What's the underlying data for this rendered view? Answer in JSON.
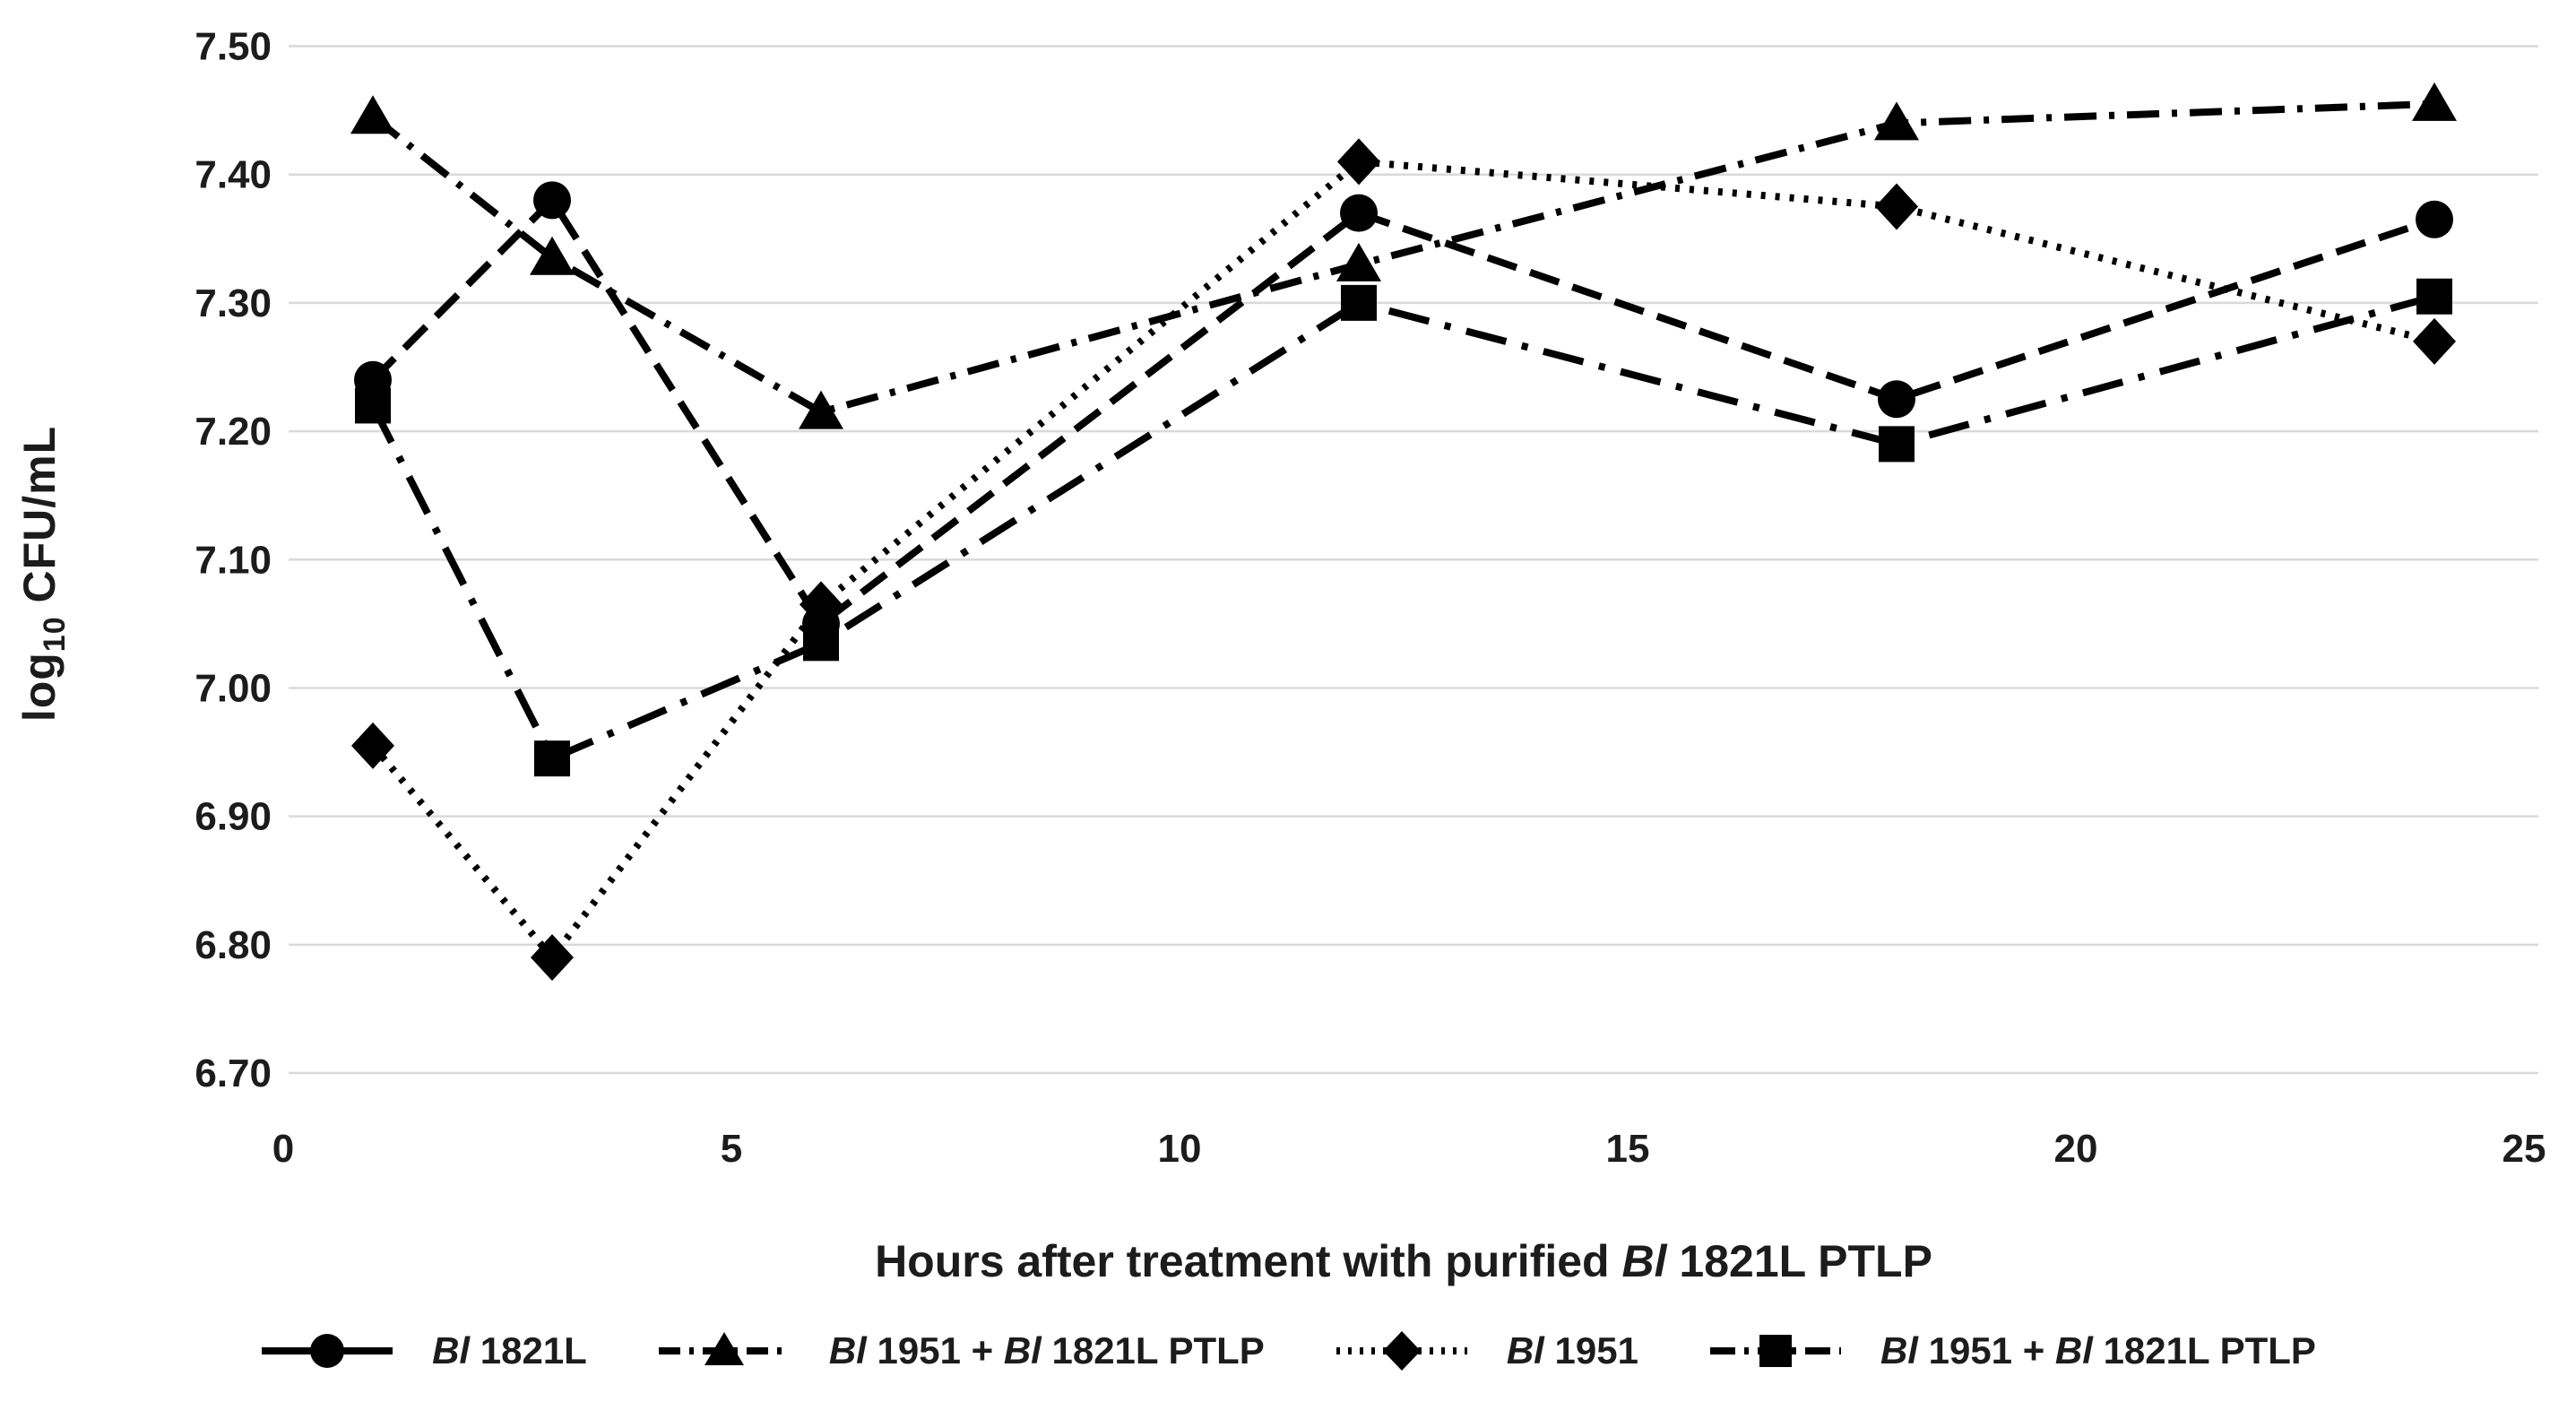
{
  "figure": {
    "background": "#ffffff",
    "grid_color": "#d9d9d9",
    "text_color": "#1c1c1c",
    "series_color": "#000000"
  },
  "chart_data": {
    "type": "line",
    "title": "",
    "xlabel": "Hours after treatment with purified Bl 1821L PTLP",
    "xlabel_segments": [
      {
        "text": "Hours after treatment with purified ",
        "italic": false
      },
      {
        "text": "Bl",
        "italic": true
      },
      {
        "text": " 1821L PTLP",
        "italic": false
      }
    ],
    "ylabel": "log10 CFU/mL",
    "ylabel_rich": {
      "prefix": "log",
      "subscript": "10",
      "suffix": " CFU/mL"
    },
    "x": [
      1,
      3,
      6,
      12,
      18,
      24
    ],
    "xlim": [
      0,
      25
    ],
    "x_tick_values": [
      0,
      5,
      10,
      15,
      20,
      25
    ],
    "x_tick_labels": [
      "0",
      "5",
      "10",
      "15",
      "20",
      "25"
    ],
    "ylim": [
      6.7,
      7.5
    ],
    "y_tick_values": [
      7.5,
      7.4,
      7.3,
      7.2,
      7.1,
      7.0,
      6.9,
      6.8,
      6.7
    ],
    "y_tick_labels": [
      "7.50",
      "7.40",
      "7.30",
      "7.20",
      "7.10",
      "7.00",
      "6.90",
      "6.80",
      "6.70"
    ],
    "grid": "horizontal-only",
    "legend_position": "bottom",
    "series": [
      {
        "name": "Bl 1821L",
        "name_segments": [
          {
            "text": "Bl",
            "italic": true
          },
          {
            "text": " 1821L",
            "italic": false
          }
        ],
        "marker": "circle",
        "line_style": "long-dash",
        "color": "#000000",
        "values": [
          7.24,
          7.38,
          7.05,
          7.37,
          7.225,
          7.365
        ]
      },
      {
        "name": "Bl 1951 + Bl 1821L PTLP",
        "name_segments": [
          {
            "text": "Bl",
            "italic": true
          },
          {
            "text": " 1951 + ",
            "italic": false
          },
          {
            "text": "Bl",
            "italic": true
          },
          {
            "text": " 1821L PTLP",
            "italic": false
          }
        ],
        "marker": "triangle",
        "line_style": "dash-dot",
        "color": "#000000",
        "values": [
          7.445,
          7.335,
          7.215,
          7.33,
          7.44,
          7.455
        ]
      },
      {
        "name": "Bl 1951",
        "name_segments": [
          {
            "text": "Bl",
            "italic": true
          },
          {
            "text": " 1951",
            "italic": false
          }
        ],
        "marker": "diamond",
        "line_style": "dotted",
        "color": "#000000",
        "values": [
          6.955,
          6.79,
          7.065,
          7.41,
          7.375,
          7.27
        ]
      },
      {
        "name": "Bl 1951 + Bl 1821L PTLP",
        "name_segments": [
          {
            "text": "Bl",
            "italic": true
          },
          {
            "text": " 1951 + ",
            "italic": false
          },
          {
            "text": "Bl",
            "italic": true
          },
          {
            "text": " 1821L PTLP",
            "italic": false
          }
        ],
        "marker": "square",
        "line_style": "long-dash-dot",
        "color": "#000000",
        "values": [
          7.22,
          6.945,
          7.035,
          7.3,
          7.19,
          7.305
        ]
      }
    ]
  }
}
